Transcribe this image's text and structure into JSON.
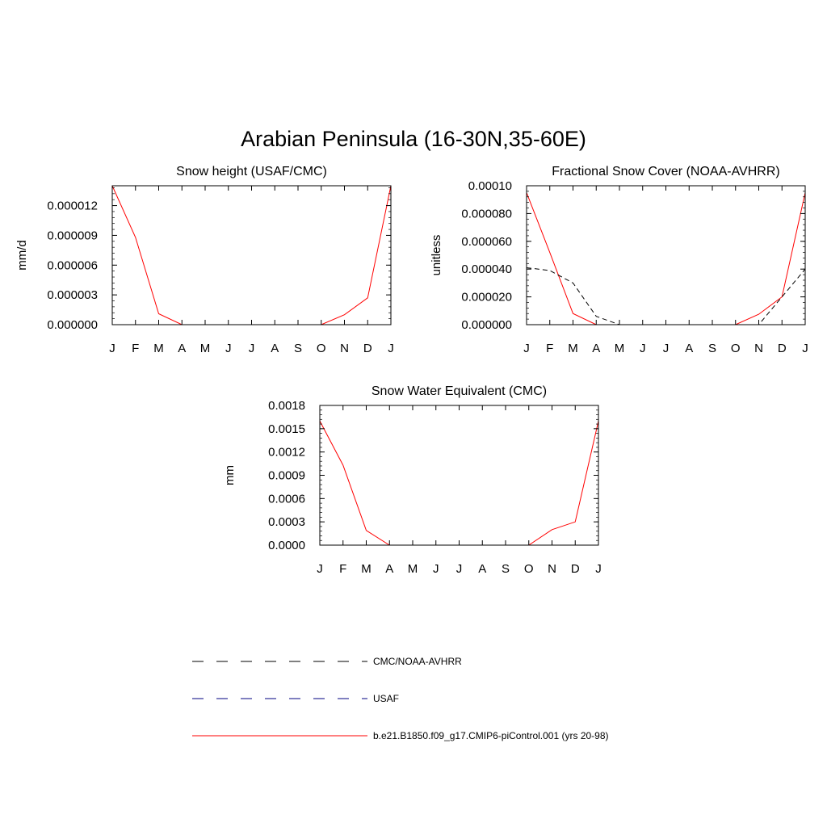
{
  "title": "Arabian Peninsula (16-30N,35-60E)",
  "colors": {
    "model": "#ff0000",
    "obs1": "#000000",
    "obs2": "#000080",
    "axis": "#000000"
  },
  "legend": [
    {
      "label": "CMC/NOAA-AVHRR",
      "color": "#000000",
      "style": "dashed"
    },
    {
      "label": "USAF",
      "color": "#000080",
      "style": "dashed"
    },
    {
      "label": "b.e21.B1850.f09_g17.CMIP6-piControl.001 (yrs 20-98)",
      "color": "#ff0000",
      "style": "solid"
    }
  ],
  "chart_data": [
    {
      "type": "line",
      "title": "Snow height (USAF/CMC)",
      "ylabel": "mm/d",
      "xlabel": "",
      "categories": [
        "J",
        "F",
        "M",
        "A",
        "M",
        "J",
        "J",
        "A",
        "S",
        "O",
        "N",
        "D",
        "J"
      ],
      "ylim": [
        0,
        1.4e-05
      ],
      "yticks": [
        0,
        3e-06,
        6e-06,
        9e-06,
        1.2e-05
      ],
      "ytick_labels": [
        "0.000000",
        "0.000003",
        "0.000006",
        "0.000009",
        "0.000012"
      ],
      "series": [
        {
          "name": "b.e21.B1850.f09_g17.CMIP6-piControl.001 (yrs 20-98)",
          "color": "#ff0000",
          "style": "solid",
          "values": [
            1.4e-05,
            8.8e-06,
            1.1e-06,
            0,
            0,
            0,
            0,
            0,
            0,
            0,
            1e-06,
            2.7e-06,
            1.4e-05
          ]
        },
        {
          "name": "USAF",
          "color": "#000080",
          "style": "dashed",
          "values": [
            0,
            0,
            0,
            0,
            0,
            0,
            0,
            0,
            0,
            0,
            0,
            0,
            0
          ]
        }
      ]
    },
    {
      "type": "line",
      "title": "Fractional Snow Cover (NOAA-AVHRR)",
      "ylabel": "unitless",
      "xlabel": "",
      "categories": [
        "J",
        "F",
        "M",
        "A",
        "M",
        "J",
        "J",
        "A",
        "S",
        "O",
        "N",
        "D",
        "J"
      ],
      "ylim": [
        0,
        0.0001
      ],
      "yticks": [
        0,
        2e-05,
        4e-05,
        6e-05,
        8e-05,
        0.0001
      ],
      "ytick_labels": [
        "0.000000",
        "0.000020",
        "0.000040",
        "0.000060",
        "0.000080",
        "0.00010"
      ],
      "series": [
        {
          "name": "b.e21.B1850.f09_g17.CMIP6-piControl.001 (yrs 20-98)",
          "color": "#ff0000",
          "style": "solid",
          "values": [
            9.5e-05,
            5.2e-05,
            8e-06,
            0,
            0,
            0,
            0,
            0,
            0,
            0,
            7.5e-06,
            2e-05,
            9.5e-05
          ]
        },
        {
          "name": "CMC/NOAA-AVHRR",
          "color": "#000000",
          "style": "dashed",
          "values": [
            4.1e-05,
            3.9e-05,
            3e-05,
            6e-06,
            0,
            0,
            0,
            0,
            0,
            0,
            0,
            2e-05,
            4e-05
          ]
        }
      ]
    },
    {
      "type": "line",
      "title": "Snow Water Equivalent (CMC)",
      "ylabel": "mm",
      "xlabel": "",
      "categories": [
        "J",
        "F",
        "M",
        "A",
        "M",
        "J",
        "J",
        "A",
        "S",
        "O",
        "N",
        "D",
        "J"
      ],
      "ylim": [
        0,
        0.0018
      ],
      "yticks": [
        0,
        0.0003,
        0.0006,
        0.0009,
        0.0012,
        0.0015,
        0.0018
      ],
      "ytick_labels": [
        "0.0000",
        "0.0003",
        "0.0006",
        "0.0009",
        "0.0012",
        "0.0015",
        "0.0018"
      ],
      "series": [
        {
          "name": "b.e21.B1850.f09_g17.CMIP6-piControl.001 (yrs 20-98)",
          "color": "#ff0000",
          "style": "solid",
          "values": [
            0.0016,
            0.00103,
            0.00019,
            0,
            0,
            0,
            0,
            0,
            0,
            0,
            0.0002,
            0.0003,
            0.0016
          ]
        },
        {
          "name": "CMC/NOAA-AVHRR",
          "color": "#000000",
          "style": "dashed",
          "values": [
            0,
            0,
            0,
            0,
            0,
            0,
            0,
            0,
            0,
            0,
            0,
            0,
            0
          ]
        }
      ]
    }
  ]
}
